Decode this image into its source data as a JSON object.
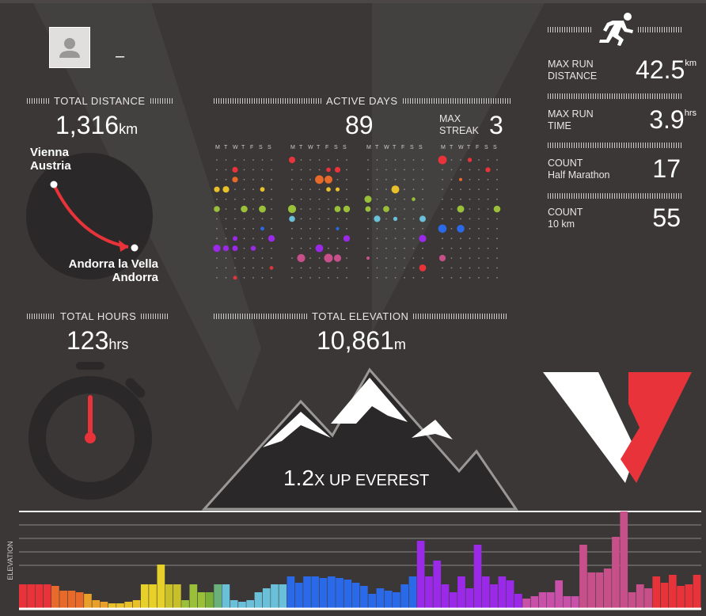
{
  "profile": {
    "name": "–"
  },
  "total_distance": {
    "label": "TOTAL DISTANCE",
    "value": "1,316",
    "unit": "km",
    "from_city": "Vienna",
    "from_country": "Austria",
    "to_city": "Andorra la Vella",
    "to_country": "Andorra"
  },
  "active_days": {
    "label": "ACTIVE DAYS",
    "value": "89",
    "streak_label_1": "MAX",
    "streak_label_2": "STREAK",
    "streak_value": "3",
    "day_letters": [
      "M",
      "T",
      "W",
      "T",
      "F",
      "S",
      "S"
    ]
  },
  "total_hours": {
    "label": "TOTAL HOURS",
    "value": "123",
    "unit": "hrs"
  },
  "total_elevation": {
    "label": "TOTAL ELEVATION",
    "value": "10,861",
    "unit": "m",
    "everest_value": "1.2",
    "everest_text": "X UP EVEREST"
  },
  "stats": [
    {
      "label_1": "MAX RUN",
      "label_2": "DISTANCE",
      "value": "42.5",
      "unit": "km"
    },
    {
      "label_1": "MAX RUN",
      "label_2": "TIME",
      "value": "3.9",
      "unit": "hrs"
    },
    {
      "label_1": "COUNT",
      "label_2": "Half Marathon",
      "value": "17",
      "unit": ""
    },
    {
      "label_1": "COUNT",
      "label_2": "10 km",
      "value": "55",
      "unit": ""
    }
  ],
  "elevation_chart": {
    "ylabel": "ELEVATION"
  },
  "colors": {
    "accent": "#e8333a",
    "background": "#3a3736",
    "circle": "#2a2828"
  },
  "icons": [
    "avatar-icon",
    "runner-icon",
    "stopwatch-icon",
    "mountain-icon",
    "route-arrow-icon",
    "logo-v-icon"
  ]
}
